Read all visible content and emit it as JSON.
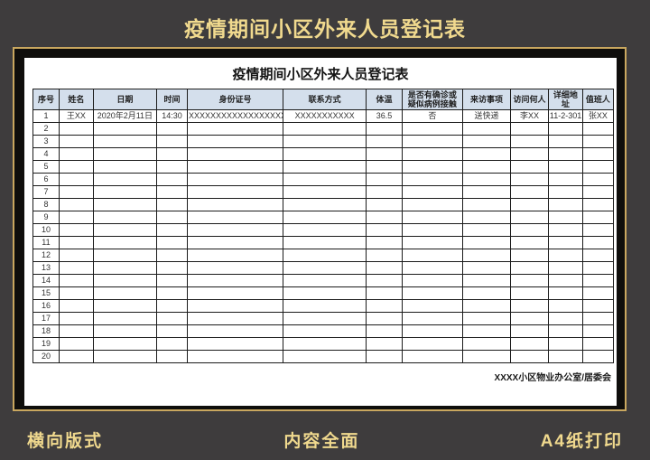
{
  "title": "疫情期间小区外来人员登记表",
  "document": {
    "table_title": "疫情期间小区外来人员登记表",
    "columns": [
      "序号",
      "姓名",
      "日期",
      "时间",
      "身份证号",
      "联系方式",
      "体温",
      "是否有确诊或\n疑似病例接触",
      "来访事项",
      "访问何人",
      "详细地址",
      "值班人"
    ],
    "filled_row": [
      "1",
      "王XX",
      "2020年2月11日",
      "14:30",
      "XXXXXXXXXXXXXXXXXX",
      "XXXXXXXXXXX",
      "36.5",
      "否",
      "送快递",
      "李XX",
      "11-2-301",
      "张XX"
    ],
    "empty_row_numbers": [
      "2",
      "3",
      "4",
      "5",
      "6",
      "7",
      "8",
      "9",
      "10",
      "11",
      "12",
      "13",
      "14",
      "15",
      "16",
      "17",
      "18",
      "19",
      "20"
    ],
    "footer_note": "XXXX小区物业办公室/居委会"
  },
  "bottom_bar": {
    "left": "横向版式",
    "center": "内容全面",
    "right": "A4纸打印"
  },
  "colors": {
    "background": "#3e3c3d",
    "gold_text": "#f0d98e",
    "frame_border": "#c9a75f",
    "card_fill": "#0f0e0c",
    "header_bg": "#d4dfec"
  }
}
